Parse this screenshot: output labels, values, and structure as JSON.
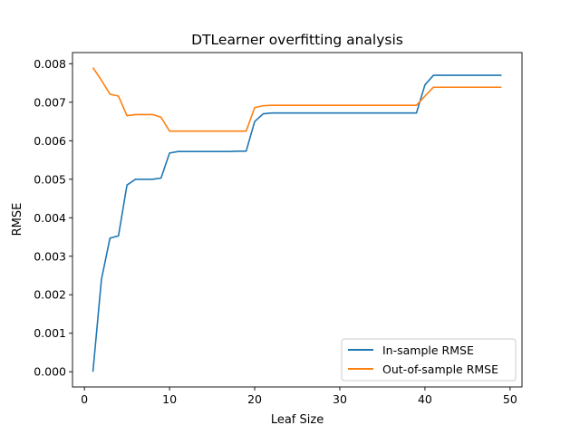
{
  "chart_data": {
    "type": "line",
    "title": "DTLearner overfitting analysis",
    "xlabel": "Leaf Size",
    "ylabel": "RMSE",
    "xlim": [
      -1.4,
      51.4
    ],
    "ylim": [
      -0.000395,
      0.00829
    ],
    "xticks": [
      0,
      10,
      20,
      30,
      40,
      50
    ],
    "xtick_labels": [
      "0",
      "10",
      "20",
      "30",
      "40",
      "50"
    ],
    "yticks": [
      0,
      0.001,
      0.002,
      0.003,
      0.004,
      0.005,
      0.006,
      0.007,
      0.008
    ],
    "ytick_labels": [
      "0.000",
      "0.001",
      "0.002",
      "0.003",
      "0.004",
      "0.005",
      "0.006",
      "0.007",
      "0.008"
    ],
    "grid": false,
    "legend_position": "lower-right",
    "x": [
      1,
      2,
      3,
      4,
      5,
      6,
      7,
      8,
      9,
      10,
      11,
      12,
      13,
      14,
      15,
      16,
      17,
      18,
      19,
      20,
      21,
      22,
      23,
      24,
      25,
      26,
      27,
      28,
      29,
      30,
      31,
      32,
      33,
      34,
      35,
      36,
      37,
      38,
      39,
      40,
      41,
      42,
      43,
      44,
      45,
      46,
      47,
      48,
      49
    ],
    "series": [
      {
        "name": "In-sample RMSE",
        "color": "#1f77b4",
        "values": [
          0.0,
          0.0024,
          0.00347,
          0.00353,
          0.00485,
          0.005,
          0.005,
          0.005,
          0.00503,
          0.00568,
          0.00572,
          0.00572,
          0.00572,
          0.00572,
          0.00572,
          0.00572,
          0.00572,
          0.00573,
          0.00573,
          0.0065,
          0.0067,
          0.00672,
          0.00672,
          0.00672,
          0.00672,
          0.00672,
          0.00672,
          0.00672,
          0.00672,
          0.00672,
          0.00672,
          0.00672,
          0.00672,
          0.00672,
          0.00672,
          0.00672,
          0.00672,
          0.00672,
          0.00672,
          0.00745,
          0.0077,
          0.0077,
          0.0077,
          0.0077,
          0.0077,
          0.0077,
          0.0077,
          0.0077,
          0.0077
        ]
      },
      {
        "name": "Out-of-sample RMSE",
        "color": "#ff7f0e",
        "values": [
          0.0079,
          0.00757,
          0.00721,
          0.00716,
          0.00665,
          0.00668,
          0.00668,
          0.00668,
          0.00661,
          0.00625,
          0.00625,
          0.00625,
          0.00625,
          0.00625,
          0.00625,
          0.00625,
          0.00625,
          0.00625,
          0.00625,
          0.00686,
          0.00691,
          0.00692,
          0.00692,
          0.00692,
          0.00692,
          0.00692,
          0.00692,
          0.00692,
          0.00692,
          0.00692,
          0.00692,
          0.00692,
          0.00692,
          0.00692,
          0.00692,
          0.00692,
          0.00692,
          0.00692,
          0.00692,
          0.00716,
          0.00739,
          0.00739,
          0.00739,
          0.00739,
          0.00739,
          0.00739,
          0.00739,
          0.00739,
          0.00739
        ]
      }
    ]
  }
}
